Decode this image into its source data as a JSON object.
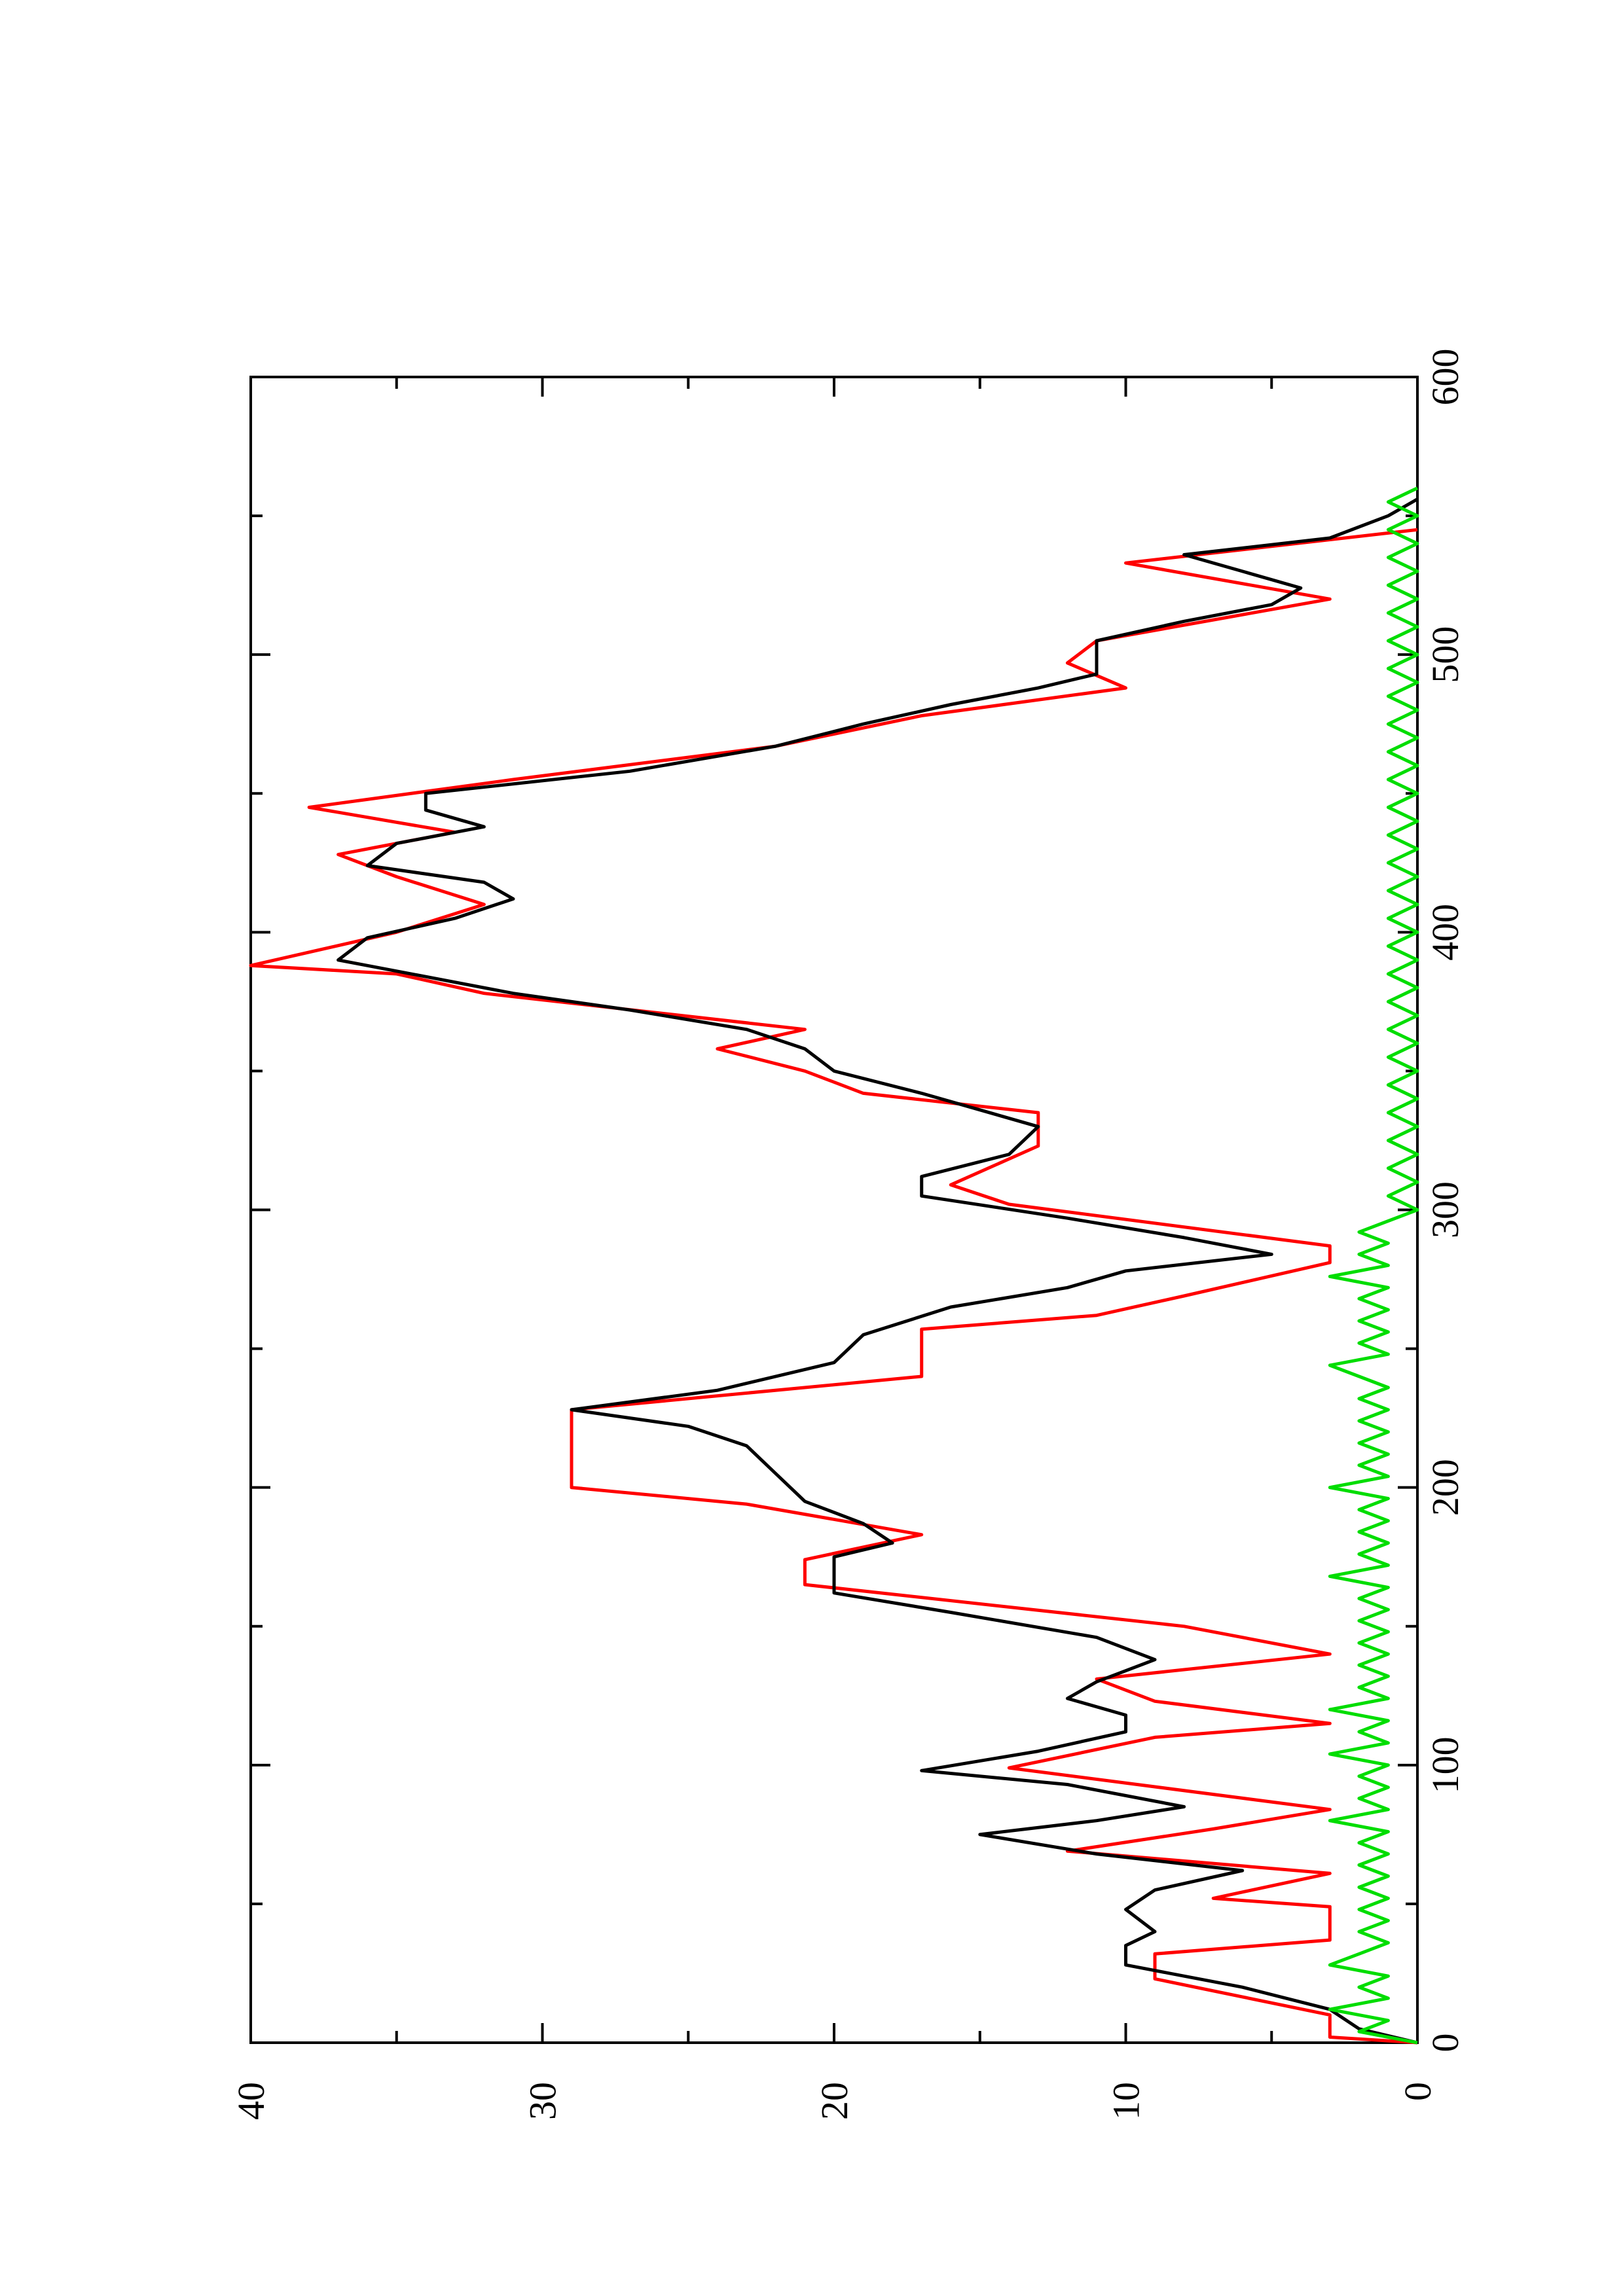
{
  "chart_data": {
    "type": "line",
    "orientation": "rotated-90-ccw",
    "title": "",
    "xlabel": "",
    "ylabel": "",
    "xlim": [
      0,
      600
    ],
    "ylim": [
      0,
      40
    ],
    "x_ticks": [
      "0",
      "100",
      "200",
      "300",
      "400",
      "500",
      "600"
    ],
    "y_ticks": [
      "0",
      "10",
      "20",
      "30",
      "40"
    ],
    "grid": false,
    "legend": "none",
    "series": [
      {
        "color": "#ff0000",
        "style": "step-ramp",
        "points": [
          [
            0,
            0
          ],
          [
            2,
            3
          ],
          [
            10,
            3
          ],
          [
            23,
            9
          ],
          [
            32,
            9
          ],
          [
            37,
            3
          ],
          [
            49,
            3
          ],
          [
            52,
            7
          ],
          [
            61,
            3
          ],
          [
            69,
            12
          ],
          [
            77,
            7
          ],
          [
            84,
            3
          ],
          [
            99,
            14
          ],
          [
            110,
            9
          ],
          [
            115,
            3
          ],
          [
            123,
            9
          ],
          [
            131,
            11
          ],
          [
            140,
            3
          ],
          [
            150,
            8
          ],
          [
            165,
            21
          ],
          [
            174,
            21
          ],
          [
            183,
            17
          ],
          [
            194,
            23
          ],
          [
            200,
            29
          ],
          [
            228,
            29
          ],
          [
            240,
            17
          ],
          [
            257,
            17
          ],
          [
            262,
            11
          ],
          [
            269,
            8
          ],
          [
            281,
            3
          ],
          [
            287,
            3
          ],
          [
            302,
            14
          ],
          [
            309,
            16
          ],
          [
            323,
            13
          ],
          [
            335,
            13
          ],
          [
            342,
            19
          ],
          [
            350,
            21
          ],
          [
            358,
            24
          ],
          [
            365,
            21
          ],
          [
            378,
            32
          ],
          [
            385,
            35
          ],
          [
            388,
            40
          ],
          [
            400,
            35
          ],
          [
            410,
            32
          ],
          [
            420,
            35
          ],
          [
            428,
            37
          ],
          [
            436,
            33
          ],
          [
            445,
            38
          ],
          [
            455,
            31
          ],
          [
            467,
            22
          ],
          [
            478,
            17
          ],
          [
            488,
            10
          ],
          [
            497,
            12
          ],
          [
            505,
            11
          ],
          [
            520,
            3
          ],
          [
            533,
            10
          ],
          [
            545,
            0
          ]
        ]
      },
      {
        "color": "#000000",
        "style": "line",
        "points": [
          [
            0,
            0
          ],
          [
            5,
            2
          ],
          [
            12,
            3
          ],
          [
            20,
            6
          ],
          [
            28,
            10
          ],
          [
            35,
            10
          ],
          [
            40,
            9
          ],
          [
            48,
            10
          ],
          [
            55,
            9
          ],
          [
            62,
            6
          ],
          [
            68,
            11
          ],
          [
            75,
            15
          ],
          [
            80,
            11
          ],
          [
            85,
            8
          ],
          [
            93,
            12
          ],
          [
            98,
            17
          ],
          [
            105,
            13
          ],
          [
            112,
            10
          ],
          [
            118,
            10
          ],
          [
            124,
            12
          ],
          [
            130,
            11
          ],
          [
            138,
            9
          ],
          [
            146,
            11
          ],
          [
            155,
            16
          ],
          [
            162,
            20
          ],
          [
            168,
            20
          ],
          [
            175,
            20
          ],
          [
            180,
            18
          ],
          [
            187,
            19
          ],
          [
            195,
            21
          ],
          [
            205,
            22
          ],
          [
            215,
            23
          ],
          [
            222,
            25
          ],
          [
            228,
            29
          ],
          [
            235,
            24
          ],
          [
            245,
            20
          ],
          [
            255,
            19
          ],
          [
            265,
            16
          ],
          [
            272,
            12
          ],
          [
            278,
            10
          ],
          [
            284,
            5
          ],
          [
            290,
            8
          ],
          [
            297,
            12
          ],
          [
            305,
            17
          ],
          [
            312,
            17
          ],
          [
            320,
            14
          ],
          [
            330,
            13
          ],
          [
            336,
            15
          ],
          [
            342,
            17
          ],
          [
            350,
            20
          ],
          [
            358,
            21
          ],
          [
            365,
            23
          ],
          [
            372,
            27
          ],
          [
            378,
            31
          ],
          [
            384,
            34
          ],
          [
            390,
            37
          ],
          [
            398,
            36
          ],
          [
            405,
            33
          ],
          [
            412,
            31
          ],
          [
            418,
            32
          ],
          [
            424,
            36
          ],
          [
            432,
            35
          ],
          [
            438,
            32
          ],
          [
            444,
            34
          ],
          [
            450,
            34
          ],
          [
            458,
            27
          ],
          [
            467,
            22
          ],
          [
            475,
            19
          ],
          [
            482,
            16
          ],
          [
            488,
            13
          ],
          [
            493,
            11
          ],
          [
            498,
            11
          ],
          [
            505,
            11
          ],
          [
            512,
            8
          ],
          [
            518,
            5
          ],
          [
            524,
            4
          ],
          [
            530,
            6
          ],
          [
            536,
            8
          ],
          [
            542,
            3
          ],
          [
            550,
            1
          ],
          [
            556,
            0
          ]
        ]
      },
      {
        "color": "#00dd00",
        "style": "noise",
        "points": [
          [
            0,
            0
          ],
          [
            4,
            2
          ],
          [
            8,
            1
          ],
          [
            12,
            3
          ],
          [
            16,
            1
          ],
          [
            20,
            2
          ],
          [
            24,
            1
          ],
          [
            28,
            3
          ],
          [
            32,
            2
          ],
          [
            36,
            1
          ],
          [
            40,
            2
          ],
          [
            44,
            1
          ],
          [
            48,
            2
          ],
          [
            52,
            1
          ],
          [
            56,
            2
          ],
          [
            60,
            1
          ],
          [
            64,
            2
          ],
          [
            68,
            1
          ],
          [
            72,
            2
          ],
          [
            76,
            1
          ],
          [
            80,
            3
          ],
          [
            84,
            1
          ],
          [
            88,
            2
          ],
          [
            92,
            1
          ],
          [
            96,
            2
          ],
          [
            100,
            1
          ],
          [
            104,
            3
          ],
          [
            108,
            1
          ],
          [
            112,
            2
          ],
          [
            116,
            1
          ],
          [
            120,
            3
          ],
          [
            124,
            1
          ],
          [
            128,
            2
          ],
          [
            132,
            1
          ],
          [
            136,
            2
          ],
          [
            140,
            1
          ],
          [
            144,
            2
          ],
          [
            148,
            1
          ],
          [
            152,
            2
          ],
          [
            156,
            1
          ],
          [
            160,
            2
          ],
          [
            164,
            1
          ],
          [
            168,
            3
          ],
          [
            172,
            1
          ],
          [
            176,
            2
          ],
          [
            180,
            1
          ],
          [
            184,
            2
          ],
          [
            188,
            1
          ],
          [
            192,
            2
          ],
          [
            196,
            1
          ],
          [
            200,
            3
          ],
          [
            204,
            1
          ],
          [
            208,
            2
          ],
          [
            212,
            1
          ],
          [
            216,
            2
          ],
          [
            220,
            1
          ],
          [
            224,
            2
          ],
          [
            228,
            1
          ],
          [
            232,
            2
          ],
          [
            236,
            1
          ],
          [
            240,
            2
          ],
          [
            244,
            3
          ],
          [
            248,
            1
          ],
          [
            252,
            2
          ],
          [
            256,
            1
          ],
          [
            260,
            2
          ],
          [
            264,
            1
          ],
          [
            268,
            2
          ],
          [
            272,
            1
          ],
          [
            276,
            3
          ],
          [
            280,
            1
          ],
          [
            284,
            2
          ],
          [
            288,
            1
          ],
          [
            292,
            2
          ],
          [
            296,
            1
          ],
          [
            300,
            0
          ],
          [
            305,
            1
          ],
          [
            310,
            0
          ],
          [
            315,
            1
          ],
          [
            320,
            0
          ],
          [
            325,
            1
          ],
          [
            330,
            0
          ],
          [
            335,
            1
          ],
          [
            340,
            0
          ],
          [
            345,
            1
          ],
          [
            350,
            0
          ],
          [
            355,
            1
          ],
          [
            360,
            0
          ],
          [
            365,
            1
          ],
          [
            370,
            0
          ],
          [
            375,
            1
          ],
          [
            380,
            0
          ],
          [
            385,
            1
          ],
          [
            390,
            0
          ],
          [
            395,
            1
          ],
          [
            400,
            0
          ],
          [
            405,
            1
          ],
          [
            410,
            0
          ],
          [
            415,
            1
          ],
          [
            420,
            0
          ],
          [
            425,
            1
          ],
          [
            430,
            0
          ],
          [
            435,
            1
          ],
          [
            440,
            0
          ],
          [
            445,
            1
          ],
          [
            450,
            0
          ],
          [
            455,
            1
          ],
          [
            460,
            0
          ],
          [
            465,
            1
          ],
          [
            470,
            0
          ],
          [
            475,
            1
          ],
          [
            480,
            0
          ],
          [
            485,
            1
          ],
          [
            490,
            0
          ],
          [
            495,
            1
          ],
          [
            500,
            0
          ],
          [
            505,
            1
          ],
          [
            510,
            0
          ],
          [
            515,
            1
          ],
          [
            520,
            0
          ],
          [
            525,
            1
          ],
          [
            530,
            0
          ],
          [
            535,
            1
          ],
          [
            540,
            0
          ],
          [
            545,
            1
          ],
          [
            550,
            0
          ],
          [
            555,
            1
          ],
          [
            560,
            0
          ]
        ]
      }
    ]
  }
}
